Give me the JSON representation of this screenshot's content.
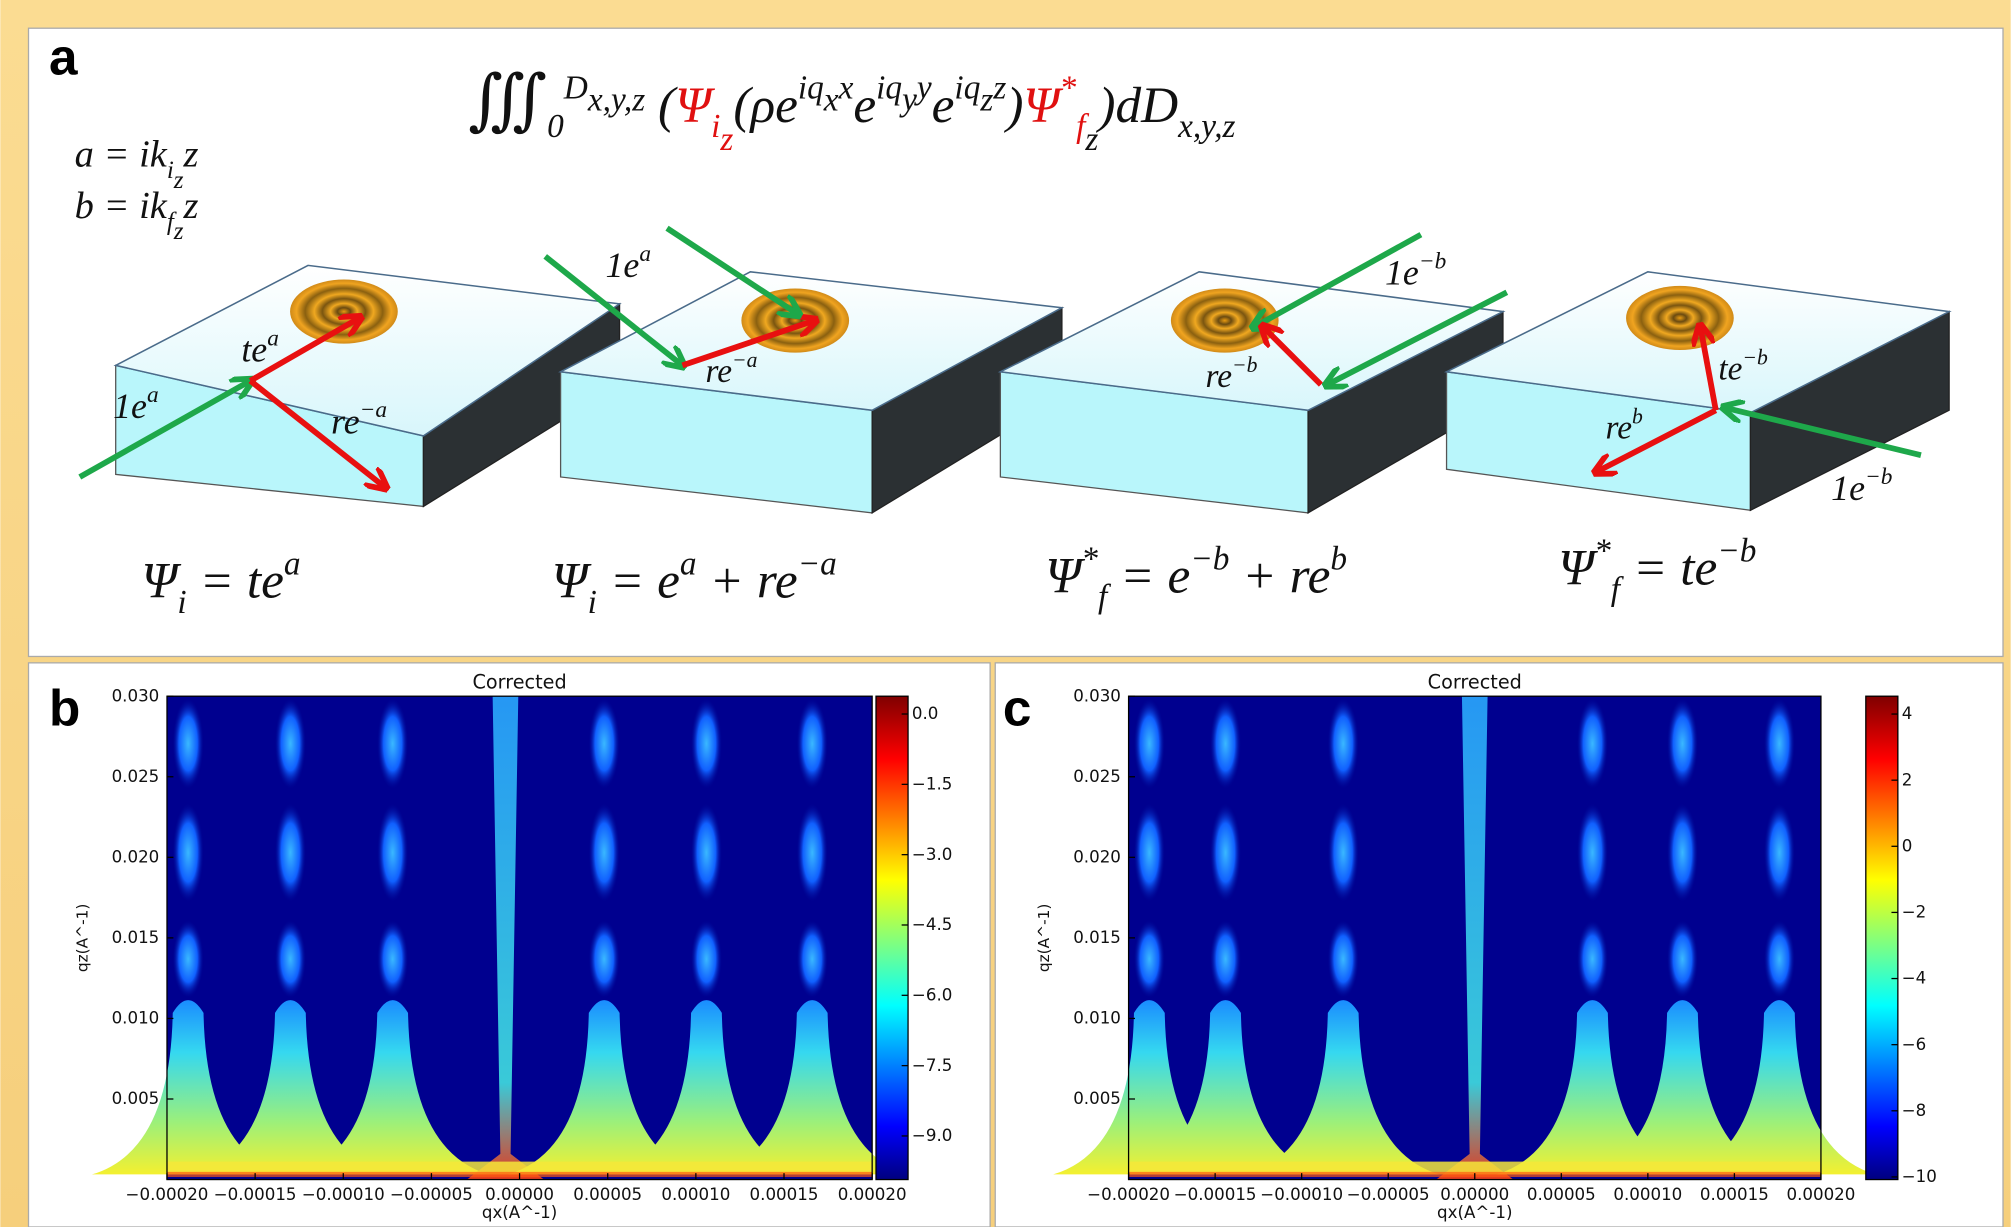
{
  "panel_labels": [
    "a",
    "b",
    "c"
  ],
  "panel_a": {
    "equations": [
      {
        "parts": [
          {
            "t": "a = ik",
            "k": "n"
          },
          {
            "t": "i",
            "k": "sub"
          },
          {
            "t": "z",
            "k": "subsub"
          },
          {
            "t": "z",
            "k": "n"
          }
        ]
      },
      {
        "parts": [
          {
            "t": "b = ik",
            "k": "n"
          },
          {
            "t": "f",
            "k": "sub"
          },
          {
            "t": "z",
            "k": "subsub"
          },
          {
            "t": "z",
            "k": "n"
          }
        ]
      },
      {
        "parts": [
          {
            "t": "∭",
            "k": "n"
          },
          {
            "t": "0",
            "k": "sub"
          },
          {
            "t": "D",
            "k": "sup"
          },
          {
            "t": "x,y,z",
            "k": "supsub"
          },
          {
            "t": " (",
            "k": "n"
          },
          {
            "t": "Ψ",
            "k": "n",
            "c": "#e01010"
          },
          {
            "t": "i",
            "k": "sub",
            "c": "#e01010"
          },
          {
            "t": "z",
            "k": "subsub",
            "c": "#e01010"
          },
          {
            "t": "(ρe",
            "k": "n"
          },
          {
            "t": "iq",
            "k": "sup"
          },
          {
            "t": "x",
            "k": "supsub"
          },
          {
            "t": "x",
            "k": "sup"
          },
          {
            "t": "e",
            "k": "n"
          },
          {
            "t": "iq",
            "k": "sup"
          },
          {
            "t": "y",
            "k": "supsub"
          },
          {
            "t": "y",
            "k": "sup"
          },
          {
            "t": "e",
            "k": "n"
          },
          {
            "t": "iq",
            "k": "sup"
          },
          {
            "t": "z",
            "k": "supsub"
          },
          {
            "t": "z",
            "k": "sup"
          },
          {
            "t": ")",
            "k": "n"
          },
          {
            "t": "Ψ",
            "k": "n",
            "c": "#e01010"
          },
          {
            "t": "*",
            "k": "sup",
            "c": "#e01010"
          },
          {
            "t": "f",
            "k": "sub",
            "c": "#e01010"
          },
          {
            "t": "z",
            "k": "subsub"
          },
          {
            "t": ")dD",
            "k": "n"
          },
          {
            "t": "x,y,z",
            "k": "sub"
          }
        ]
      },
      {
        "parts": [
          {
            "t": "te",
            "k": "n"
          },
          {
            "t": "a",
            "k": "sup"
          }
        ]
      },
      {
        "parts": [
          {
            "t": "1e",
            "k": "n"
          },
          {
            "t": "a",
            "k": "sup"
          }
        ]
      },
      {
        "parts": [
          {
            "t": "re",
            "k": "n"
          },
          {
            "t": "−a",
            "k": "sup"
          }
        ]
      },
      {
        "parts": [
          {
            "t": "1e",
            "k": "n"
          },
          {
            "t": "a",
            "k": "sup"
          }
        ]
      },
      {
        "parts": [
          {
            "t": "re",
            "k": "n"
          },
          {
            "t": "−a",
            "k": "sup"
          }
        ]
      },
      {
        "parts": [
          {
            "t": "1e",
            "k": "n"
          },
          {
            "t": "−b",
            "k": "sup"
          }
        ]
      },
      {
        "parts": [
          {
            "t": "re",
            "k": "n"
          },
          {
            "t": "−b",
            "k": "sup"
          }
        ]
      },
      {
        "parts": [
          {
            "t": "te",
            "k": "n"
          },
          {
            "t": "−b",
            "k": "sup"
          }
        ]
      },
      {
        "parts": [
          {
            "t": "re",
            "k": "n"
          },
          {
            "t": "b",
            "k": "sup"
          }
        ]
      },
      {
        "parts": [
          {
            "t": "1e",
            "k": "n"
          },
          {
            "t": "−b",
            "k": "sup"
          }
        ]
      },
      {
        "parts": [
          {
            "t": "Ψ",
            "k": "n"
          },
          {
            "t": "i",
            "k": "sub"
          },
          {
            "t": " = te",
            "k": "n"
          },
          {
            "t": "a",
            "k": "sup"
          }
        ]
      },
      {
        "parts": [
          {
            "t": "Ψ",
            "k": "n"
          },
          {
            "t": "i",
            "k": "sub"
          },
          {
            "t": " = e",
            "k": "n"
          },
          {
            "t": "a",
            "k": "sup"
          },
          {
            "t": " + re",
            "k": "n"
          },
          {
            "t": "−a",
            "k": "sup"
          }
        ]
      },
      {
        "parts": [
          {
            "t": "Ψ",
            "k": "n"
          },
          {
            "t": "*",
            "k": "sup"
          },
          {
            "t": "f",
            "k": "sub"
          },
          {
            "t": " = e",
            "k": "n"
          },
          {
            "t": "−b",
            "k": "sup"
          },
          {
            "t": " + re",
            "k": "n"
          },
          {
            "t": "b",
            "k": "sup"
          }
        ]
      },
      {
        "parts": [
          {
            "t": "Ψ",
            "k": "n"
          },
          {
            "t": "*",
            "k": "sup"
          },
          {
            "t": "f",
            "k": "sub"
          },
          {
            "t": " = te",
            "k": "n"
          },
          {
            "t": "−b",
            "k": "sup"
          }
        ]
      }
    ]
  },
  "chart_data": [
    {
      "type": "heatmap",
      "title": "Corrected",
      "xlabel": "qx(A^-1)",
      "ylabel": "qz(A^-1)",
      "xlim": [
        -0.0002,
        0.0002
      ],
      "xticks": [
        {
          "value": -0.0002,
          "label": "−0.00020"
        },
        {
          "value": -0.00015,
          "label": "−0.00015"
        },
        {
          "value": -0.0001,
          "label": "−0.00010"
        },
        {
          "value": -5e-05,
          "label": "−0.00005"
        },
        {
          "value": 0,
          "label": "0.00000"
        },
        {
          "value": 5e-05,
          "label": "0.00005"
        },
        {
          "value": 0.0001,
          "label": "0.00010"
        },
        {
          "value": 0.00015,
          "label": "0.00015"
        },
        {
          "value": 0.0002,
          "label": "0.00020"
        }
      ],
      "ylim": [
        0,
        0.03
      ],
      "yticks": [
        {
          "value": 0.005,
          "label": "0.005"
        },
        {
          "value": 0.01,
          "label": "0.010"
        },
        {
          "value": 0.015,
          "label": "0.015"
        },
        {
          "value": 0.02,
          "label": "0.020"
        },
        {
          "value": 0.025,
          "label": "0.025"
        },
        {
          "value": 0.03,
          "label": "0.030"
        }
      ],
      "clim": [
        -9.93,
        0.38
      ],
      "cticks": [
        {
          "value": 0,
          "label": "0.0"
        },
        {
          "value": -1.5,
          "label": "−1.5"
        },
        {
          "value": -3,
          "label": "−3.0"
        },
        {
          "value": -4.5,
          "label": "−4.5"
        },
        {
          "value": -6,
          "label": "−6.0"
        },
        {
          "value": -7.5,
          "label": "−7.5"
        },
        {
          "value": -9,
          "label": "−9.0"
        }
      ]
    },
    {
      "type": "heatmap",
      "title": "Corrected",
      "xlabel": "qx(A^-1)",
      "ylabel": "qz(A^-1)",
      "xlim": [
        -0.0002,
        0.0002
      ],
      "xticks": [
        {
          "value": -0.0002,
          "label": "−0.00020"
        },
        {
          "value": -0.00015,
          "label": "−0.00015"
        },
        {
          "value": -0.0001,
          "label": "−0.00010"
        },
        {
          "value": -5e-05,
          "label": "−0.00005"
        },
        {
          "value": 0,
          "label": "0.00000"
        },
        {
          "value": 5e-05,
          "label": "0.00005"
        },
        {
          "value": 0.0001,
          "label": "0.00010"
        },
        {
          "value": 0.00015,
          "label": "0.00015"
        },
        {
          "value": 0.0002,
          "label": "0.00020"
        }
      ],
      "ylim": [
        0,
        0.03
      ],
      "yticks": [
        {
          "value": 0.005,
          "label": "0.005"
        },
        {
          "value": 0.01,
          "label": "0.010"
        },
        {
          "value": 0.015,
          "label": "0.015"
        },
        {
          "value": 0.02,
          "label": "0.020"
        },
        {
          "value": 0.025,
          "label": "0.025"
        },
        {
          "value": 0.03,
          "label": "0.030"
        }
      ],
      "clim": [
        -10.08,
        4.54
      ],
      "cticks": [
        4,
        2,
        0,
        {
          "value": -2,
          "label": "−2"
        },
        {
          "value": -4,
          "label": "−4"
        },
        {
          "value": -6,
          "label": "−6"
        },
        {
          "value": -8,
          "label": "−8"
        },
        {
          "value": -10,
          "label": "−10"
        }
      ]
    }
  ]
}
